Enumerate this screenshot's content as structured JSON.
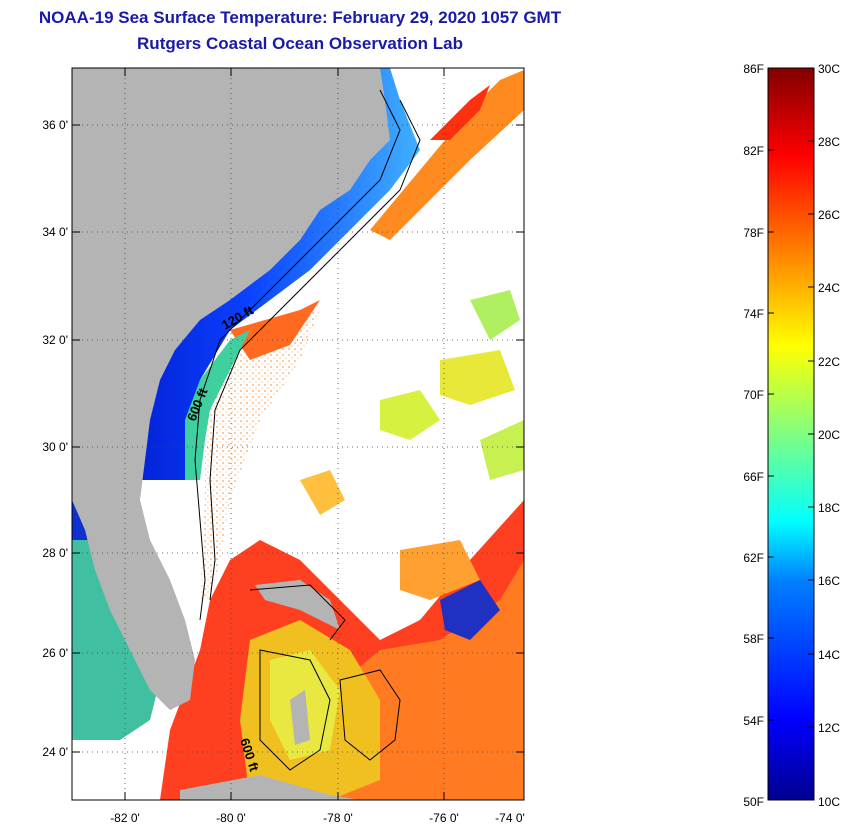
{
  "header": {
    "title": "NOAA-19 Sea Surface Temperature:  February 29, 2020 1057 GMT",
    "subtitle": "Rutgers Coastal Ocean Observation Lab"
  },
  "map": {
    "lat_labels": [
      "36 0'",
      "34 0'",
      "32 0'",
      "30 0'",
      "28 0'",
      "26 0'",
      "24 0'"
    ],
    "lon_labels": [
      "-82 0'",
      "-80 0'",
      "-78 0'",
      "-76 0'",
      "-74 0'"
    ],
    "contour_labels": [
      "120 ft",
      "600 ft",
      "600 ft"
    ]
  },
  "colorbar": {
    "fahrenheit_labels": [
      "86F",
      "82F",
      "78F",
      "74F",
      "70F",
      "66F",
      "62F",
      "58F",
      "54F",
      "50F"
    ],
    "celsius_labels": [
      "30C",
      "28C",
      "26C",
      "24C",
      "22C",
      "20C",
      "18C",
      "16C",
      "14C",
      "12C",
      "10C"
    ],
    "colors": [
      "#00008f",
      "#0000ff",
      "#0080ff",
      "#00ffff",
      "#80ff80",
      "#ffff00",
      "#ff8000",
      "#ff0000",
      "#800000"
    ]
  }
}
